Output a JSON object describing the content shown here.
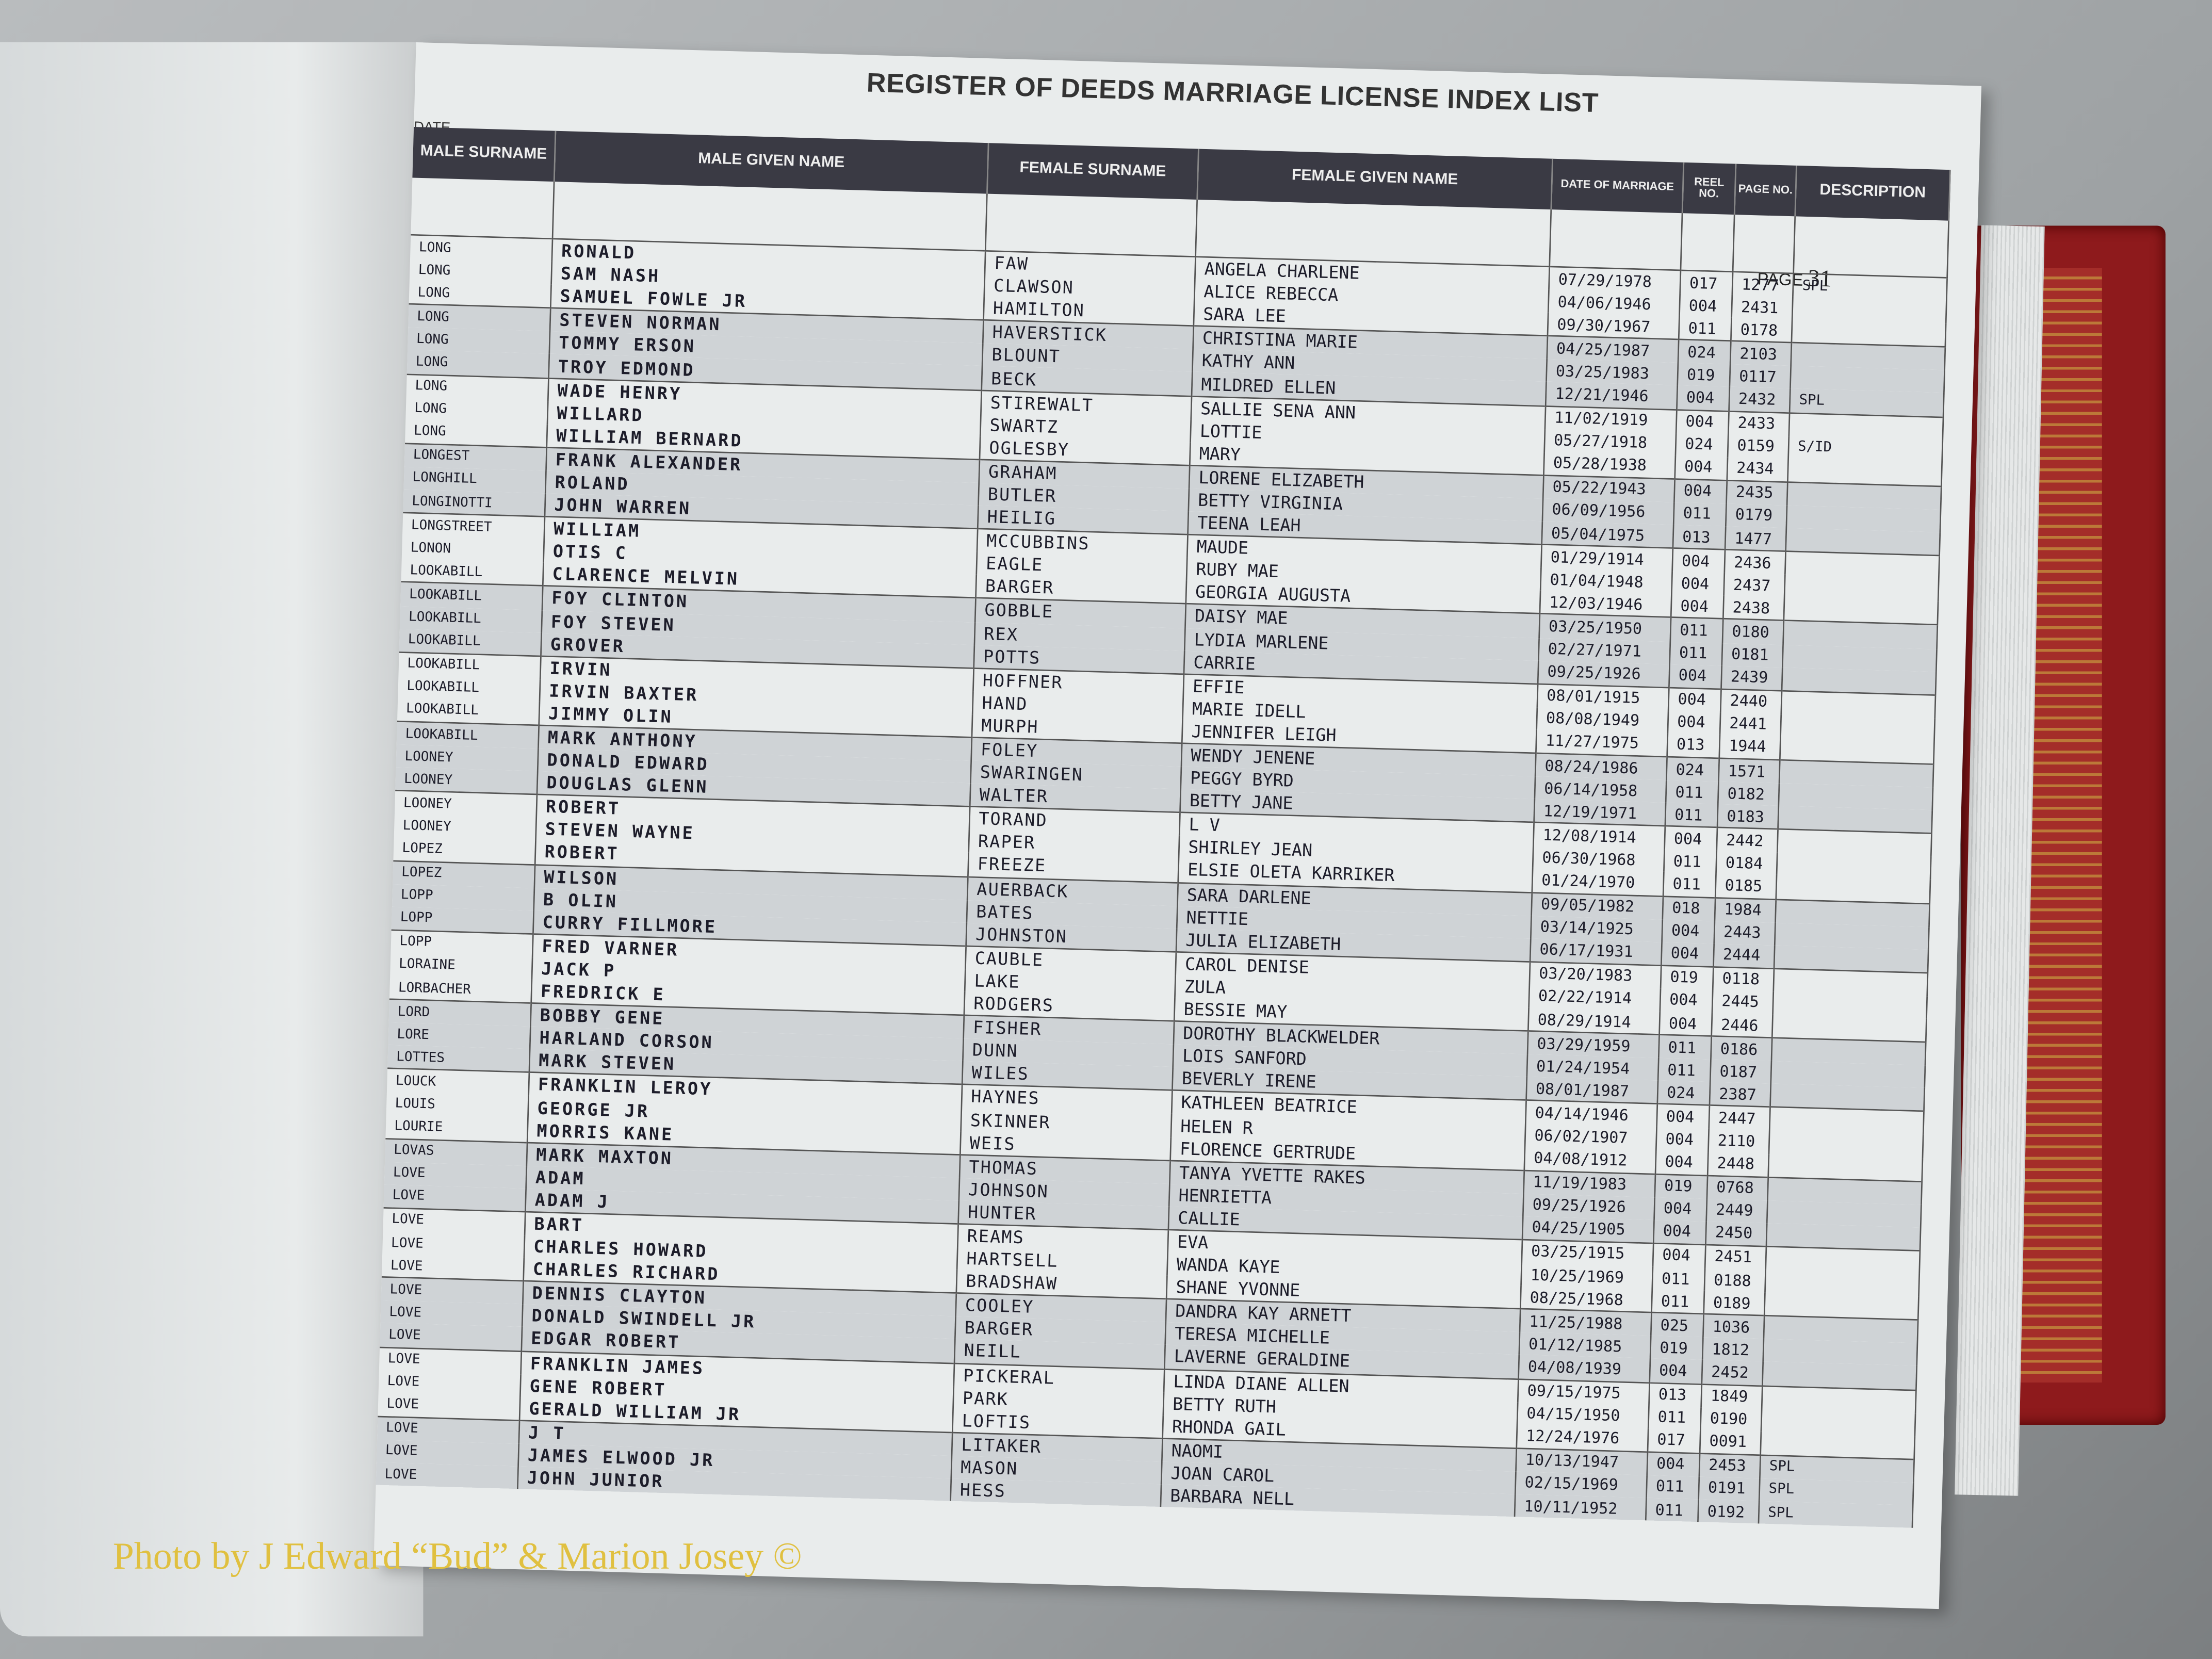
{
  "register": {
    "title": "REGISTER OF DEEDS MARRIAGE LICENSE INDEX LIST",
    "date_fragment": "DATE",
    "page_label": "PAGE",
    "page_number": "31",
    "columns": {
      "male_surname": "MALE SURNAME",
      "male_given": "MALE GIVEN NAME",
      "female_surname": "FEMALE SURNAME",
      "female_given": "FEMALE GIVEN NAME",
      "date": "DATE OF MARRIAGE",
      "reel": "REEL NO.",
      "page": "PAGE NO.",
      "description": "DESCRIPTION"
    },
    "rows": [
      [
        "LONG",
        "RONALD",
        "FAW",
        "ANGELA CHARLENE",
        "07/29/1978",
        "017",
        "1277",
        "SPL"
      ],
      [
        "LONG",
        "SAM NASH",
        "CLAWSON",
        "ALICE REBECCA",
        "04/06/1946",
        "004",
        "2431",
        ""
      ],
      [
        "LONG",
        "SAMUEL FOWLE JR",
        "HAMILTON",
        "SARA LEE",
        "09/30/1967",
        "011",
        "0178",
        ""
      ],
      [
        "LONG",
        "STEVEN NORMAN",
        "HAVERSTICK",
        "CHRISTINA MARIE",
        "04/25/1987",
        "024",
        "2103",
        ""
      ],
      [
        "LONG",
        "TOMMY ERSON",
        "BLOUNT",
        "KATHY ANN",
        "03/25/1983",
        "019",
        "0117",
        ""
      ],
      [
        "LONG",
        "TROY EDMOND",
        "BECK",
        "MILDRED ELLEN",
        "12/21/1946",
        "004",
        "2432",
        "SPL"
      ],
      [
        "LONG",
        "WADE HENRY",
        "STIREWALT",
        "SALLIE SENA ANN",
        "11/02/1919",
        "004",
        "2433",
        ""
      ],
      [
        "LONG",
        "WILLARD",
        "SWARTZ",
        "LOTTIE",
        "05/27/1918",
        "024",
        "0159",
        "S/ID"
      ],
      [
        "LONG",
        "WILLIAM BERNARD",
        "OGLESBY",
        "MARY",
        "05/28/1938",
        "004",
        "2434",
        ""
      ],
      [
        "LONGEST",
        "FRANK ALEXANDER",
        "GRAHAM",
        "LORENE ELIZABETH",
        "05/22/1943",
        "004",
        "2435",
        ""
      ],
      [
        "LONGHILL",
        "ROLAND",
        "BUTLER",
        "BETTY VIRGINIA",
        "06/09/1956",
        "011",
        "0179",
        ""
      ],
      [
        "LONGINOTTI",
        "JOHN WARREN",
        "HEILIG",
        "TEENA LEAH",
        "05/04/1975",
        "013",
        "1477",
        ""
      ],
      [
        "LONGSTREET",
        "WILLIAM",
        "MCCUBBINS",
        "MAUDE",
        "01/29/1914",
        "004",
        "2436",
        ""
      ],
      [
        "LONON",
        "OTIS C",
        "EAGLE",
        "RUBY MAE",
        "01/04/1948",
        "004",
        "2437",
        ""
      ],
      [
        "LOOKABILL",
        "CLARENCE MELVIN",
        "BARGER",
        "GEORGIA AUGUSTA",
        "12/03/1946",
        "004",
        "2438",
        ""
      ],
      [
        "LOOKABILL",
        "FOY CLINTON",
        "GOBBLE",
        "DAISY MAE",
        "03/25/1950",
        "011",
        "0180",
        ""
      ],
      [
        "LOOKABILL",
        "FOY STEVEN",
        "REX",
        "LYDIA MARLENE",
        "02/27/1971",
        "011",
        "0181",
        ""
      ],
      [
        "LOOKABILL",
        "GROVER",
        "POTTS",
        "CARRIE",
        "09/25/1926",
        "004",
        "2439",
        ""
      ],
      [
        "LOOKABILL",
        "IRVIN",
        "HOFFNER",
        "EFFIE",
        "08/01/1915",
        "004",
        "2440",
        ""
      ],
      [
        "LOOKABILL",
        "IRVIN BAXTER",
        "HAND",
        "MARIE IDELL",
        "08/08/1949",
        "004",
        "2441",
        ""
      ],
      [
        "LOOKABILL",
        "JIMMY OLIN",
        "MURPH",
        "JENNIFER LEIGH",
        "11/27/1975",
        "013",
        "1944",
        ""
      ],
      [
        "LOOKABILL",
        "MARK ANTHONY",
        "FOLEY",
        "WENDY JENENE",
        "08/24/1986",
        "024",
        "1571",
        ""
      ],
      [
        "LOONEY",
        "DONALD EDWARD",
        "SWARINGEN",
        "PEGGY BYRD",
        "06/14/1958",
        "011",
        "0182",
        ""
      ],
      [
        "LOONEY",
        "DOUGLAS GLENN",
        "WALTER",
        "BETTY JANE",
        "12/19/1971",
        "011",
        "0183",
        ""
      ],
      [
        "LOONEY",
        "ROBERT",
        "TORAND",
        "L V",
        "12/08/1914",
        "004",
        "2442",
        ""
      ],
      [
        "LOONEY",
        "STEVEN WAYNE",
        "RAPER",
        "SHIRLEY JEAN",
        "06/30/1968",
        "011",
        "0184",
        ""
      ],
      [
        "LOPEZ",
        "ROBERT",
        "FREEZE",
        "ELSIE OLETA KARRIKER",
        "01/24/1970",
        "011",
        "0185",
        ""
      ],
      [
        "LOPEZ",
        "WILSON",
        "AUERBACK",
        "SARA DARLENE",
        "09/05/1982",
        "018",
        "1984",
        ""
      ],
      [
        "LOPP",
        "B OLIN",
        "BATES",
        "NETTIE",
        "03/14/1925",
        "004",
        "2443",
        ""
      ],
      [
        "LOPP",
        "CURRY FILLMORE",
        "JOHNSTON",
        "JULIA ELIZABETH",
        "06/17/1931",
        "004",
        "2444",
        ""
      ],
      [
        "LOPP",
        "FRED VARNER",
        "CAUBLE",
        "CAROL DENISE",
        "03/20/1983",
        "019",
        "0118",
        ""
      ],
      [
        "LORAINE",
        "JACK P",
        "LAKE",
        "ZULA",
        "02/22/1914",
        "004",
        "2445",
        ""
      ],
      [
        "LORBACHER",
        "FREDRICK E",
        "RODGERS",
        "BESSIE MAY",
        "08/29/1914",
        "004",
        "2446",
        ""
      ],
      [
        "LORD",
        "BOBBY GENE",
        "FISHER",
        "DOROTHY BLACKWELDER",
        "03/29/1959",
        "011",
        "0186",
        ""
      ],
      [
        "LORE",
        "HARLAND CORSON",
        "DUNN",
        "LOIS SANFORD",
        "01/24/1954",
        "011",
        "0187",
        ""
      ],
      [
        "LOTTES",
        "MARK STEVEN",
        "WILES",
        "BEVERLY IRENE",
        "08/01/1987",
        "024",
        "2387",
        ""
      ],
      [
        "LOUCK",
        "FRANKLIN LEROY",
        "HAYNES",
        "KATHLEEN BEATRICE",
        "04/14/1946",
        "004",
        "2447",
        ""
      ],
      [
        "LOUIS",
        "GEORGE JR",
        "SKINNER",
        "HELEN R",
        "06/02/1907",
        "004",
        "2110",
        ""
      ],
      [
        "LOURIE",
        "MORRIS KANE",
        "WEIS",
        "FLORENCE GERTRUDE",
        "04/08/1912",
        "004",
        "2448",
        ""
      ],
      [
        "LOVAS",
        "MARK MAXTON",
        "THOMAS",
        "TANYA YVETTE RAKES",
        "11/19/1983",
        "019",
        "0768",
        ""
      ],
      [
        "LOVE",
        "ADAM",
        "JOHNSON",
        "HENRIETTA",
        "09/25/1926",
        "004",
        "2449",
        ""
      ],
      [
        "LOVE",
        "ADAM J",
        "HUNTER",
        "CALLIE",
        "04/25/1905",
        "004",
        "2450",
        ""
      ],
      [
        "LOVE",
        "BART",
        "REAMS",
        "EVA",
        "03/25/1915",
        "004",
        "2451",
        ""
      ],
      [
        "LOVE",
        "CHARLES HOWARD",
        "HARTSELL",
        "WANDA KAYE",
        "10/25/1969",
        "011",
        "0188",
        ""
      ],
      [
        "LOVE",
        "CHARLES RICHARD",
        "BRADSHAW",
        "SHANE YVONNE",
        "08/25/1968",
        "011",
        "0189",
        ""
      ],
      [
        "LOVE",
        "DENNIS CLAYTON",
        "COOLEY",
        "DANDRA KAY ARNETT",
        "11/25/1988",
        "025",
        "1036",
        ""
      ],
      [
        "LOVE",
        "DONALD SWINDELL JR",
        "BARGER",
        "TERESA MICHELLE",
        "01/12/1985",
        "019",
        "1812",
        ""
      ],
      [
        "LOVE",
        "EDGAR ROBERT",
        "NEILL",
        "LAVERNE GERALDINE",
        "04/08/1939",
        "004",
        "2452",
        ""
      ],
      [
        "LOVE",
        "FRANKLIN JAMES",
        "PICKERAL",
        "LINDA DIANE ALLEN",
        "09/15/1975",
        "013",
        "1849",
        ""
      ],
      [
        "LOVE",
        "GENE ROBERT",
        "PARK",
        "BETTY RUTH",
        "04/15/1950",
        "011",
        "0190",
        ""
      ],
      [
        "LOVE",
        "GERALD WILLIAM JR",
        "LOFTIS",
        "RHONDA GAIL",
        "12/24/1976",
        "017",
        "0091",
        ""
      ],
      [
        "LOVE",
        "J T",
        "LITAKER",
        "NAOMI",
        "10/13/1947",
        "004",
        "2453",
        "SPL"
      ],
      [
        "LOVE",
        "JAMES ELWOOD JR",
        "MASON",
        "JOAN CAROL",
        "02/15/1969",
        "011",
        "0191",
        "SPL"
      ],
      [
        "LOVE",
        "JOHN JUNIOR",
        "HESS",
        "BARBARA NELL",
        "10/11/1952",
        "011",
        "0192",
        "SPL"
      ]
    ]
  },
  "credit": "Photo by J Edward “Bud” & Marion Josey ©",
  "colors": {
    "header": "#3a3a44",
    "shade": "#cfd3d6",
    "binder": "#8e1a1c",
    "credit": "#e0c040"
  }
}
